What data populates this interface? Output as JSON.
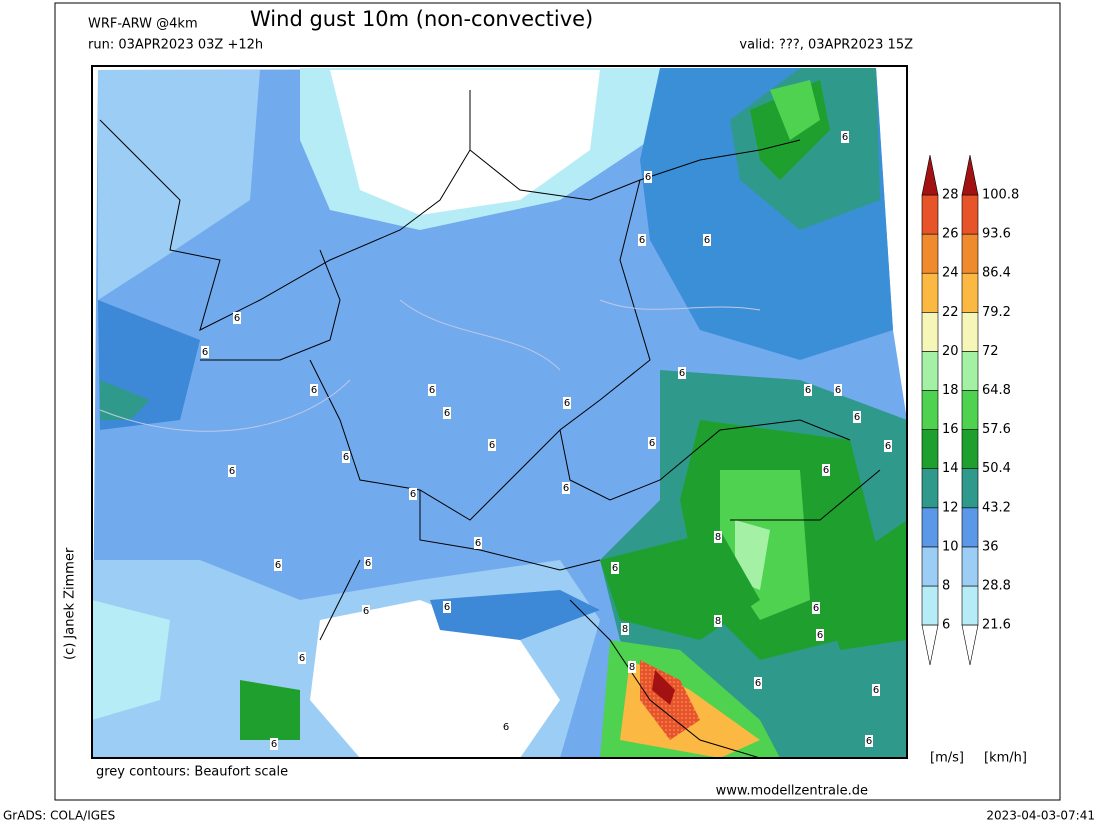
{
  "header": {
    "model": "WRF-ARW @4km",
    "title": "Wind gust 10m (non-convective)",
    "run": "run: 03APR2023 03Z +12h",
    "valid": "valid: ???, 03APR2023 15Z"
  },
  "credit": "(c) Janek Zimmer",
  "note": "grey contours: Beaufort scale",
  "website": "www.modellzentrale.de",
  "footer": {
    "software": "GrADS: COLA/IGES",
    "timestamp": "2023-04-03-07:41"
  },
  "colorbar": {
    "unit_ms": "[m/s]",
    "unit_kmh": "[km/h]",
    "ms": [
      6,
      8,
      10,
      12,
      14,
      16,
      18,
      20,
      22,
      24,
      26,
      28
    ],
    "kmh": [
      21.6,
      28.8,
      36,
      43.2,
      50.4,
      57.6,
      64.8,
      72,
      79.2,
      86.4,
      93.6,
      100.8
    ],
    "colors": [
      "#b6ecf6",
      "#9ccdf5",
      "#5b98e8",
      "#2f9a8c",
      "#1fa02e",
      "#4fd250",
      "#a4f0a4",
      "#f6f6b8",
      "#fbb843",
      "#f08a2e",
      "#e8542a"
    ],
    "over_color": "#a31212",
    "under_color": "#ffffff"
  },
  "contour_labels": [
    "6",
    "6",
    "6",
    "6",
    "6",
    "6",
    "6",
    "6",
    "6",
    "6",
    "6",
    "6",
    "6",
    "6",
    "6",
    "6",
    "6",
    "6",
    "6",
    "6",
    "6",
    "8",
    "8",
    "8",
    "8",
    "6",
    "6",
    "6",
    "6",
    "6",
    "6",
    "6",
    "6",
    "6",
    "6",
    "6",
    "6",
    "6",
    "6",
    "6"
  ]
}
